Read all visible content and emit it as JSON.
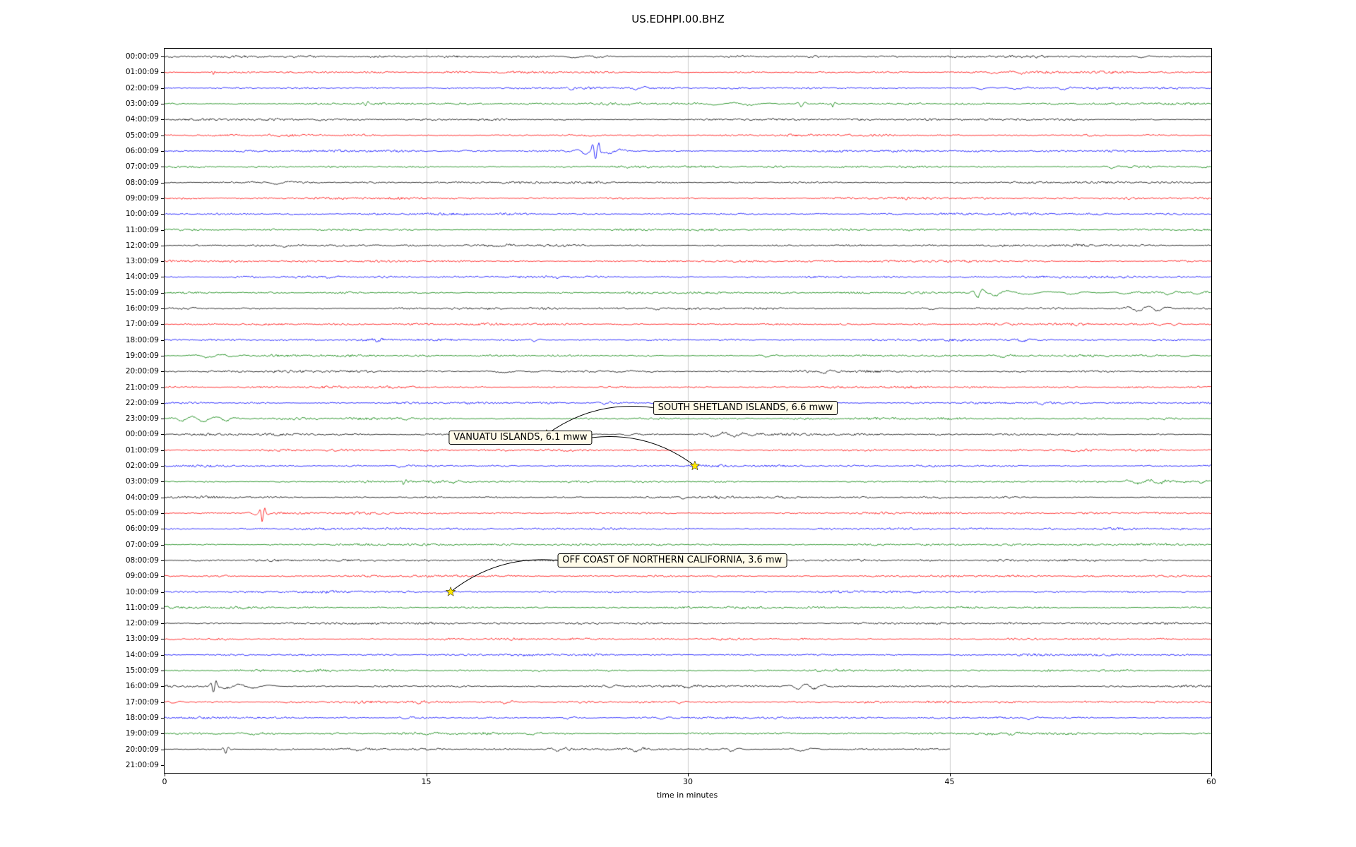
{
  "chart_data": {
    "type": "line",
    "subtype": "helicorder-dayplot",
    "title": "US.EDHPI.00.BHZ",
    "xlabel": "time in minutes",
    "xlim": [
      0,
      60
    ],
    "x_ticks": [
      0,
      15,
      30,
      45,
      60
    ],
    "grid_minutes": [
      15,
      30,
      45
    ],
    "grid_on": true,
    "grid_color": "#cccccc",
    "axis_color": "#000000",
    "trace_colors_cycle": [
      "#000000",
      "#ff0000",
      "#0000ff",
      "#008000"
    ],
    "marker": {
      "shape": "star",
      "color": "#ffe800",
      "edge": "#000000"
    },
    "rows": [
      {
        "label": "00:00:09",
        "events": [
          [
            23.5,
            1.6,
            0.8
          ],
          [
            24.8,
            1.9,
            0.5
          ],
          [
            56.0,
            1.7,
            0.35
          ]
        ]
      },
      {
        "label": "01:00:09",
        "events": [
          [
            2.8,
            3.5,
            0.07
          ],
          [
            47.5,
            1.9,
            0.6
          ],
          [
            49.2,
            1.6,
            0.4
          ]
        ]
      },
      {
        "label": "02:00:09",
        "events": [
          [
            23.3,
            2.1,
            0.3
          ],
          [
            27.0,
            2.3,
            0.4
          ],
          [
            46.8,
            1.9,
            0.4
          ],
          [
            48.8,
            1.7,
            0.5
          ],
          [
            51.5,
            2.3,
            0.4
          ]
        ]
      },
      {
        "label": "03:00:09",
        "events": [
          [
            11.5,
            3.6,
            0.12
          ],
          [
            26.5,
            1.6,
            0.5
          ],
          [
            31.5,
            1.7,
            0.8
          ],
          [
            33.5,
            1.8,
            0.7
          ],
          [
            36.5,
            5.0,
            0.16
          ],
          [
            38.3,
            4.2,
            0.1
          ]
        ]
      },
      {
        "label": "04:00:09",
        "events": [
          [
            9.0,
            1.3,
            0.5
          ]
        ]
      },
      {
        "label": "05:00:09",
        "events": []
      },
      {
        "label": "06:00:09",
        "events": [
          [
            24.7,
            17.0,
            0.13
          ],
          [
            24.1,
            4.0,
            0.45
          ],
          [
            25.4,
            3.2,
            0.6
          ],
          [
            23.2,
            2.0,
            0.4
          ]
        ]
      },
      {
        "label": "07:00:09",
        "events": [
          [
            54.3,
            2.3,
            0.3
          ]
        ]
      },
      {
        "label": "08:00:09",
        "events": [
          [
            6.3,
            2.3,
            0.7
          ],
          [
            5.4,
            1.6,
            0.4
          ]
        ]
      },
      {
        "label": "09:00:09",
        "events": []
      },
      {
        "label": "10:00:09",
        "events": [
          [
            42.0,
            1.3,
            0.4
          ]
        ]
      },
      {
        "label": "11:00:09",
        "events": []
      },
      {
        "label": "12:00:09",
        "events": [
          [
            7.0,
            1.3,
            0.6
          ],
          [
            19.0,
            1.2,
            0.5
          ]
        ]
      },
      {
        "label": "13:00:09",
        "events": []
      },
      {
        "label": "14:00:09",
        "events": [
          [
            9.5,
            1.4,
            0.4
          ],
          [
            22.5,
            1.3,
            0.4
          ]
        ]
      },
      {
        "label": "15:00:09",
        "events": [
          [
            46.6,
            7.5,
            0.22
          ],
          [
            47.6,
            4.0,
            0.5
          ],
          [
            49.5,
            2.6,
            0.8
          ],
          [
            52.0,
            2.0,
            0.6
          ],
          [
            55.0,
            2.0,
            0.5
          ],
          [
            57.5,
            3.0,
            0.4
          ],
          [
            59.2,
            2.5,
            0.4
          ]
        ]
      },
      {
        "label": "16:00:09",
        "events": [
          [
            28.2,
            1.8,
            0.4
          ],
          [
            44.0,
            1.5,
            0.4
          ],
          [
            55.8,
            4.2,
            0.45
          ],
          [
            56.9,
            3.5,
            0.4
          ]
        ]
      },
      {
        "label": "17:00:09",
        "events": [
          [
            52.3,
            2.6,
            0.15
          ],
          [
            57.0,
            2.0,
            0.3
          ],
          [
            57.9,
            2.0,
            0.2
          ]
        ]
      },
      {
        "label": "18:00:09",
        "events": [
          [
            12.2,
            2.3,
            0.2
          ],
          [
            21.2,
            2.1,
            0.25
          ],
          [
            49.2,
            1.9,
            0.4
          ]
        ]
      },
      {
        "label": "19:00:09",
        "events": [
          [
            2.5,
            2.6,
            0.7
          ],
          [
            3.8,
            2.1,
            0.5
          ],
          [
            34.5,
            2.3,
            0.3
          ],
          [
            48.0,
            1.9,
            0.4
          ],
          [
            58.5,
            1.6,
            0.4
          ]
        ]
      },
      {
        "label": "20:00:09",
        "events": [
          [
            19.5,
            1.9,
            0.8
          ],
          [
            21.0,
            1.7,
            0.6
          ],
          [
            26.0,
            1.6,
            0.5
          ],
          [
            37.8,
            2.6,
            0.3
          ]
        ]
      },
      {
        "label": "21:00:09",
        "events": []
      },
      {
        "label": "22:00:09",
        "events": [
          [
            25.2,
            2.3,
            0.25
          ],
          [
            50.3,
            2.1,
            0.3
          ]
        ]
      },
      {
        "label": "23:00:09",
        "events": [
          [
            1.0,
            3.0,
            0.45
          ],
          [
            2.2,
            3.6,
            0.5
          ],
          [
            3.5,
            2.6,
            0.4
          ],
          [
            13.8,
            2.0,
            0.3
          ]
        ]
      },
      {
        "label": "00:00:09",
        "events": [
          [
            21.9,
            2.0,
            0.3
          ],
          [
            26.5,
            1.5,
            0.4
          ],
          [
            31.5,
            3.0,
            0.5
          ],
          [
            32.6,
            3.1,
            0.5
          ],
          [
            33.6,
            2.5,
            0.4
          ]
        ]
      },
      {
        "label": "01:00:09",
        "events": []
      },
      {
        "label": "02:00:09",
        "events": [
          [
            13.5,
            1.6,
            0.4
          ],
          [
            30.4,
            1.9,
            0.3
          ]
        ]
      },
      {
        "label": "03:00:09",
        "events": [
          [
            13.7,
            3.6,
            0.12
          ],
          [
            16.5,
            1.9,
            0.3
          ],
          [
            55.8,
            3.1,
            0.5
          ],
          [
            57.0,
            2.6,
            0.4
          ],
          [
            59.4,
            2.1,
            0.3
          ]
        ]
      },
      {
        "label": "04:00:09",
        "events": [
          [
            29.7,
            1.6,
            0.3
          ]
        ]
      },
      {
        "label": "05:00:09",
        "events": [
          [
            5.6,
            13.5,
            0.11
          ],
          [
            5.2,
            2.6,
            0.3
          ]
        ]
      },
      {
        "label": "06:00:09",
        "events": []
      },
      {
        "label": "07:00:09",
        "events": []
      },
      {
        "label": "08:00:09",
        "events": []
      },
      {
        "label": "09:00:09",
        "events": []
      },
      {
        "label": "10:00:09",
        "events": [
          [
            16.4,
            1.6,
            0.25
          ]
        ]
      },
      {
        "label": "11:00:09",
        "events": []
      },
      {
        "label": "12:00:09",
        "events": []
      },
      {
        "label": "13:00:09",
        "events": []
      },
      {
        "label": "14:00:09",
        "events": []
      },
      {
        "label": "15:00:09",
        "events": []
      },
      {
        "label": "16:00:09",
        "events": [
          [
            2.8,
            11.5,
            0.12
          ],
          [
            3.6,
            3.1,
            0.6
          ],
          [
            5.0,
            2.6,
            0.7
          ],
          [
            25.5,
            2.6,
            0.3
          ],
          [
            30.0,
            1.6,
            0.5
          ],
          [
            36.3,
            4.1,
            0.4
          ],
          [
            37.2,
            3.6,
            0.4
          ]
        ]
      },
      {
        "label": "17:00:09",
        "events": [
          [
            0.5,
            1.6,
            0.3
          ],
          [
            14.5,
            2.1,
            0.3
          ],
          [
            19.5,
            2.3,
            0.3
          ],
          [
            29.5,
            1.9,
            0.3
          ]
        ]
      },
      {
        "label": "18:00:09",
        "events": [
          [
            13.8,
            2.1,
            0.25
          ],
          [
            23.0,
            1.6,
            0.3
          ],
          [
            28.5,
            1.9,
            0.3
          ],
          [
            49.5,
            1.9,
            0.5
          ]
        ]
      },
      {
        "label": "19:00:09",
        "events": [
          [
            5.0,
            1.6,
            0.4
          ],
          [
            15.0,
            2.1,
            0.4
          ],
          [
            21.0,
            1.9,
            0.3
          ],
          [
            48.5,
            2.1,
            0.4
          ]
        ]
      },
      {
        "label": "20:00:09",
        "span": [
          0,
          45
        ],
        "events": [
          [
            3.5,
            5.2,
            0.12
          ],
          [
            11.0,
            2.1,
            0.4
          ],
          [
            22.5,
            3.1,
            0.3
          ],
          [
            27.0,
            2.1,
            0.4
          ],
          [
            32.5,
            3.1,
            0.3
          ],
          [
            36.5,
            2.6,
            0.5
          ]
        ]
      },
      {
        "label": "21:00:09",
        "span": [
          0,
          0
        ],
        "events": []
      }
    ],
    "annotations": [
      {
        "text": "SOUTH SHETLAND ISLANDS, 6.6 mww",
        "row": 24,
        "minute": 21.9,
        "label_minute": 33.3,
        "label_row": 22.3
      },
      {
        "text": "VANUATU ISLANDS, 6.1 mww",
        "row": 26,
        "minute": 30.4,
        "label_minute": 20.4,
        "label_row": 24.2
      },
      {
        "text": "OFF COAST OF NORTHERN CALIFORNIA, 3.6 mw",
        "row": 34,
        "minute": 16.4,
        "label_minute": 29.1,
        "label_row": 32.0
      }
    ]
  }
}
